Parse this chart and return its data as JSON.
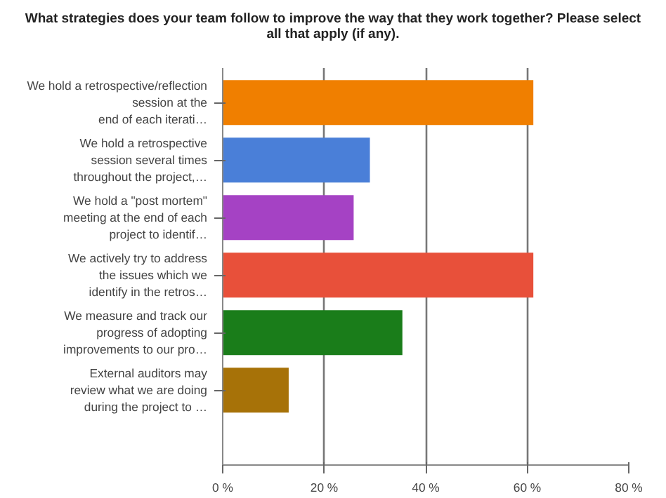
{
  "chart_data": {
    "type": "bar",
    "orientation": "horizontal",
    "title": "What strategies does your team follow to improve the way that they work together?  Please select\nall that apply (if any).",
    "categories": [
      "We hold a retrospective/reflection\nsession at the\nend of each iterati…",
      "We hold a retrospective\nsession several times\nthroughout the project,…",
      "We hold a \"post mortem\"\nmeeting at the end of each\nproject to identif…",
      "We actively try to address\nthe issues which we\nidentify in the retros…",
      "We measure and track our\nprogress of adopting\nimprovements to our pro…",
      "External auditors may\nreview what we are doing\nduring the project to …"
    ],
    "values": [
      61.2,
      29.0,
      25.8,
      61.2,
      35.4,
      13.0
    ],
    "colors": [
      "#f07f00",
      "#4a7fd8",
      "#a542c4",
      "#e8503a",
      "#1a7d1a",
      "#a77208"
    ],
    "xlim": [
      0,
      80
    ],
    "xticks": [
      {
        "value": 0,
        "label": "0 %"
      },
      {
        "value": 20,
        "label": "20 %"
      },
      {
        "value": 40,
        "label": "40 %"
      },
      {
        "value": 60,
        "label": "60 %"
      },
      {
        "value": 80,
        "label": "80 %"
      }
    ],
    "grid": "x"
  }
}
